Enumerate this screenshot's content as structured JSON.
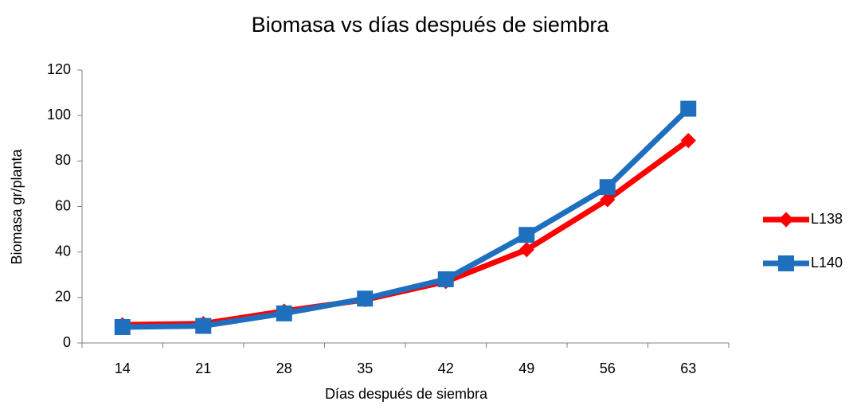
{
  "chart_data": {
    "type": "line",
    "title": "Biomasa vs días después de siembra",
    "x_label": "Días después de siembra",
    "y_label": "Biomasa gr/planta",
    "categories": [
      "14",
      "21",
      "28",
      "35",
      "42",
      "49",
      "56",
      "63"
    ],
    "series": [
      {
        "name": "L138",
        "color": "#ff0000",
        "marker": "diamond",
        "values": [
          8,
          8.5,
          14,
          19,
          27,
          41,
          63,
          89
        ]
      },
      {
        "name": "L140",
        "color": "#1f6fbf",
        "marker": "square",
        "values": [
          7,
          7.5,
          13,
          19.5,
          28,
          47.5,
          68.5,
          103
        ]
      }
    ],
    "ylim": [
      0,
      120
    ],
    "yticks": [
      0,
      20,
      40,
      60,
      80,
      100,
      120
    ],
    "grid": false,
    "legend": "right"
  }
}
